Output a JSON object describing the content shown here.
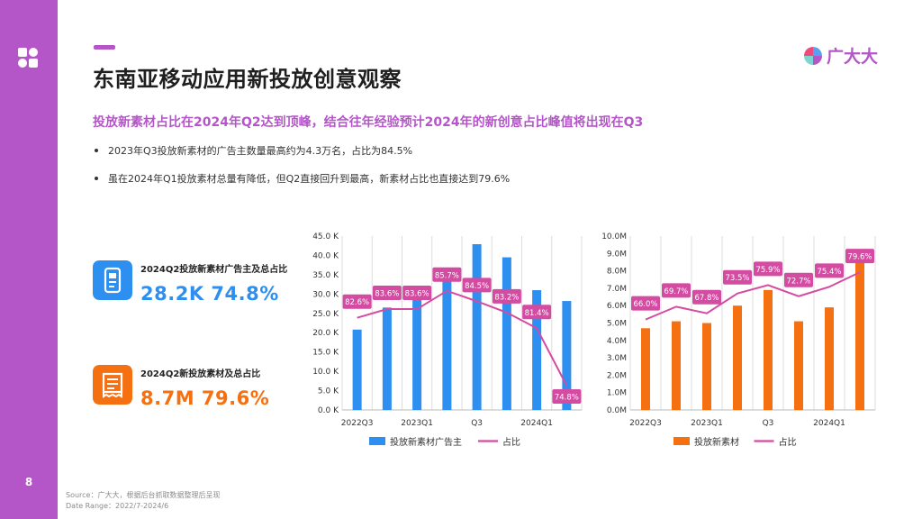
{
  "page": {
    "number": "8",
    "title": "东南亚移动应用新投放创意观察",
    "subtitle": "投放新素材占比在2024年Q2达到顶峰，结合往年经验预计2024年的新创意占比峰值将出现在Q3",
    "brand": "广大大",
    "bullets": [
      "2023年Q3投放新素材的广告主数量最高约为4.3万名，占比为84.5%",
      "虽在2024年Q1投放素材总量有降低，但Q2直接回升到最高，新素材占比也直接达到79.6%"
    ],
    "source": "Source：广大大，根据后台抓取数据整理后呈现",
    "date_range": "Date Range：2022/7-2024/6",
    "accent_color": "#b455c8"
  },
  "kpis": [
    {
      "label": "2024Q2投放新素材广告主及总占比",
      "value": "28.2K 74.8%",
      "color": "#2d8ff0",
      "icon": "phone-ad-icon"
    },
    {
      "label": "2024Q2新投放素材及总占比",
      "value": "8.7M 79.6%",
      "color": "#f57010",
      "icon": "receipt-icon"
    }
  ],
  "chart_data": [
    {
      "type": "bar",
      "categories": [
        "2022Q3",
        "2022Q4",
        "2023Q1",
        "2023Q2",
        "2023Q3",
        "2023Q4",
        "2024Q1",
        "2024Q2"
      ],
      "x_tick_labels": [
        "2022Q3",
        "",
        "2023Q1",
        "",
        "Q3",
        "",
        "2024Q1",
        ""
      ],
      "ylim": [
        0,
        45
      ],
      "y_ticks": [
        "0.0 K",
        "5.0 K",
        "10.0 K",
        "15.0 K",
        "20.0 K",
        "25.0 K",
        "30.0 K",
        "35.0 K",
        "40.0 K",
        "45.0 K"
      ],
      "bar_color": "#2d8ff0",
      "line_color": "#d44ba2",
      "series": [
        {
          "name": "投放新素材广告主",
          "kind": "bar",
          "unit": "K",
          "values": [
            20.8,
            26.5,
            31.3,
            34.5,
            42.9,
            39.5,
            31.0,
            28.2
          ]
        },
        {
          "name": "占比",
          "kind": "line",
          "unit": "%",
          "values": [
            82.6,
            83.6,
            83.6,
            85.7,
            84.5,
            83.2,
            81.4,
            74.8
          ],
          "labels": [
            "82.6%",
            "83.6%",
            "83.6%",
            "85.7%",
            "84.5%",
            "83.2%",
            "81.4%",
            "74.8%"
          ]
        }
      ],
      "legend": "bottom"
    },
    {
      "type": "bar",
      "categories": [
        "2022Q3",
        "2022Q4",
        "2023Q1",
        "2023Q2",
        "2023Q3",
        "2023Q4",
        "2024Q1",
        "2024Q2"
      ],
      "x_tick_labels": [
        "2022Q3",
        "",
        "2023Q1",
        "",
        "Q3",
        "",
        "2024Q1",
        ""
      ],
      "ylim": [
        0,
        10
      ],
      "y_ticks": [
        "0.0M",
        "1.0M",
        "2.0M",
        "3.0M",
        "4.0M",
        "5.0M",
        "6.0M",
        "7.0M",
        "8.0M",
        "9.0M",
        "10.0M"
      ],
      "bar_color": "#f57010",
      "line_color": "#d44ba2",
      "series": [
        {
          "name": "投放新素材",
          "kind": "bar",
          "unit": "M",
          "values": [
            4.7,
            5.1,
            5.0,
            6.0,
            6.9,
            5.1,
            5.9,
            8.7
          ]
        },
        {
          "name": "占比",
          "kind": "line",
          "unit": "%",
          "values": [
            66.0,
            69.7,
            67.8,
            73.5,
            75.9,
            72.7,
            75.4,
            79.6
          ],
          "labels": [
            "66.0%",
            "69.7%",
            "67.8%",
            "73.5%",
            "75.9%",
            "72.7%",
            "75.4%",
            "79.6%"
          ]
        }
      ],
      "legend": "bottom"
    }
  ]
}
